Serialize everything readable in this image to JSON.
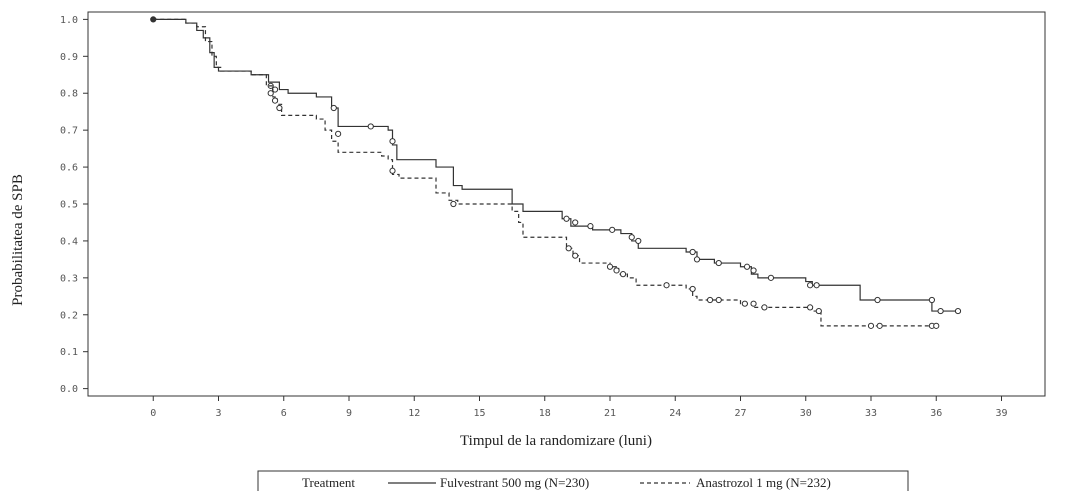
{
  "chart_data": {
    "type": "line",
    "title": "",
    "xlabel": "Timpul de la randomizare (luni)",
    "ylabel": "Probabilitatea de SPB",
    "xlim": [
      -3,
      41
    ],
    "ylim": [
      -0.02,
      1.02
    ],
    "xticks": [
      0,
      3,
      6,
      9,
      12,
      15,
      18,
      21,
      24,
      27,
      30,
      33,
      36,
      39
    ],
    "yticks": [
      0.0,
      0.1,
      0.2,
      0.3,
      0.4,
      0.5,
      0.6,
      0.7,
      0.8,
      0.9,
      1.0
    ],
    "ytick_labels": [
      "0.0",
      "0.1",
      "0.2",
      "0.3",
      "0.4",
      "0.5",
      "0.6",
      "0.7",
      "0.8",
      "0.9",
      "1.0"
    ],
    "grid": false,
    "legend": {
      "title": "Treatment",
      "position": "bottom",
      "entries": [
        "Fulvestrant 500 mg (N=230)",
        "Anastrozol 1 mg (N=232)"
      ]
    },
    "series": [
      {
        "name": "Fulvestrant 500 mg (N=230)",
        "line_style": "solid",
        "x": [
          0,
          1.5,
          2.0,
          2.3,
          2.6,
          2.8,
          3.0,
          4.5,
          5.3,
          5.8,
          6.2,
          7.5,
          8.2,
          8.5,
          10.8,
          11.0,
          11.2,
          13.0,
          13.8,
          14.2,
          16.5,
          17.0,
          18.8,
          19.2,
          20.2,
          21.5,
          22.0,
          22.3,
          24.5,
          25.0,
          25.8,
          27.0,
          27.5,
          27.8,
          30.0,
          30.3,
          32.5,
          33.0,
          35.8,
          36.0,
          37.0
        ],
        "y": [
          1.0,
          0.99,
          0.97,
          0.95,
          0.91,
          0.87,
          0.86,
          0.85,
          0.83,
          0.81,
          0.8,
          0.79,
          0.76,
          0.71,
          0.7,
          0.66,
          0.62,
          0.6,
          0.55,
          0.54,
          0.5,
          0.48,
          0.46,
          0.44,
          0.43,
          0.42,
          0.4,
          0.38,
          0.37,
          0.35,
          0.34,
          0.33,
          0.31,
          0.3,
          0.29,
          0.28,
          0.24,
          0.24,
          0.21,
          0.21,
          0.21
        ],
        "censored": [
          [
            5.4,
            0.82
          ],
          [
            5.6,
            0.81
          ],
          [
            8.3,
            0.76
          ],
          [
            10.0,
            0.71
          ],
          [
            11.0,
            0.67
          ],
          [
            19.0,
            0.46
          ],
          [
            19.4,
            0.45
          ],
          [
            20.1,
            0.44
          ],
          [
            21.1,
            0.43
          ],
          [
            22.0,
            0.41
          ],
          [
            22.3,
            0.4
          ],
          [
            24.8,
            0.37
          ],
          [
            25.0,
            0.35
          ],
          [
            26.0,
            0.34
          ],
          [
            27.3,
            0.33
          ],
          [
            27.6,
            0.32
          ],
          [
            28.4,
            0.3
          ],
          [
            30.2,
            0.28
          ],
          [
            30.5,
            0.28
          ],
          [
            33.3,
            0.24
          ],
          [
            35.8,
            0.24
          ],
          [
            36.2,
            0.21
          ],
          [
            37.0,
            0.21
          ]
        ]
      },
      {
        "name": "Anastrozol 1 mg (N=232)",
        "line_style": "dashed",
        "x": [
          0,
          1.5,
          2.0,
          2.4,
          2.7,
          2.9,
          3.1,
          4.5,
          5.2,
          5.5,
          5.7,
          5.9,
          7.5,
          7.9,
          8.2,
          8.5,
          10.5,
          10.8,
          11.0,
          11.3,
          13.0,
          13.6,
          14.0,
          16.5,
          16.8,
          17.0,
          19.0,
          19.3,
          19.6,
          21.0,
          21.4,
          21.8,
          22.2,
          24.5,
          24.8,
          25.0,
          27.0,
          27.3,
          27.6,
          30.0,
          30.3,
          30.7,
          35.8,
          36.0
        ],
        "y": [
          1.0,
          0.99,
          0.98,
          0.94,
          0.9,
          0.87,
          0.86,
          0.85,
          0.82,
          0.79,
          0.77,
          0.74,
          0.73,
          0.7,
          0.67,
          0.64,
          0.63,
          0.62,
          0.58,
          0.57,
          0.53,
          0.51,
          0.5,
          0.48,
          0.45,
          0.41,
          0.38,
          0.36,
          0.34,
          0.33,
          0.31,
          0.3,
          0.28,
          0.27,
          0.25,
          0.24,
          0.23,
          0.23,
          0.22,
          0.22,
          0.21,
          0.17,
          0.17,
          0.17
        ],
        "censored": [
          [
            5.4,
            0.8
          ],
          [
            5.6,
            0.78
          ],
          [
            5.8,
            0.76
          ],
          [
            8.5,
            0.69
          ],
          [
            11.0,
            0.59
          ],
          [
            13.8,
            0.5
          ],
          [
            19.1,
            0.38
          ],
          [
            19.4,
            0.36
          ],
          [
            21.0,
            0.33
          ],
          [
            21.3,
            0.32
          ],
          [
            21.6,
            0.31
          ],
          [
            23.6,
            0.28
          ],
          [
            24.8,
            0.27
          ],
          [
            25.6,
            0.24
          ],
          [
            26.0,
            0.24
          ],
          [
            27.2,
            0.23
          ],
          [
            27.6,
            0.23
          ],
          [
            28.1,
            0.22
          ],
          [
            30.2,
            0.22
          ],
          [
            30.6,
            0.21
          ],
          [
            33.0,
            0.17
          ],
          [
            33.4,
            0.17
          ],
          [
            35.8,
            0.17
          ],
          [
            36.0,
            0.17
          ]
        ]
      }
    ]
  }
}
